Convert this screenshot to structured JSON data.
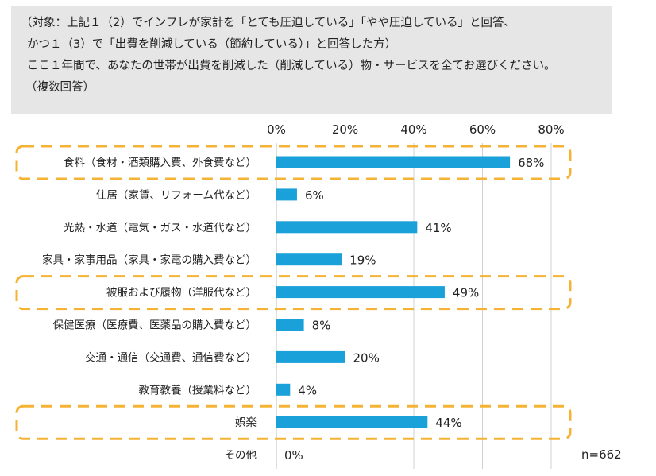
{
  "question": {
    "lines": [
      "（対象：上記１（2）でインフレが家計を「とても圧迫している」「やや圧迫している」と回答、",
      "かつ１（3）で「出費を削減している（節約している）」と回答した方）",
      "ここ１年間で、あなたの世帯が出費を削減した（削減している）物・サービスを全てお選びください。",
      "（複数回答）"
    ]
  },
  "sample_size": "n=662",
  "colors": {
    "bar": "#1ba1d9",
    "highlight": "#f5b335",
    "grid": "#d0d0d0",
    "question_bg": "#e7e6e6"
  },
  "chart_data": {
    "type": "bar",
    "orientation": "horizontal",
    "title": "",
    "xlabel": "",
    "ylabel": "",
    "xlim": [
      0,
      80
    ],
    "ticks": [
      0,
      20,
      40,
      60,
      80
    ],
    "tick_labels": [
      "0%",
      "20%",
      "40%",
      "60%",
      "80%"
    ],
    "categories": [
      "食料（食材・酒類購入費、外食費など）",
      "住居（家賃、リフォーム代など）",
      "光熱・水道（電気・ガス・水道代など）",
      "家具・家事用品（家具・家電の購入費など）",
      "被服および履物（洋服代など）",
      "保健医療（医療費、医薬品の購入費など）",
      "交通・通信（交通費、通信費など）",
      "教育教養（授業料など）",
      "娯楽",
      "その他"
    ],
    "values": [
      68,
      6,
      41,
      19,
      49,
      8,
      20,
      4,
      44,
      0
    ],
    "value_labels": [
      "68%",
      "6%",
      "41%",
      "19%",
      "49%",
      "8%",
      "20%",
      "4%",
      "44%",
      "0%"
    ],
    "highlighted": [
      "食料（食材・酒類購入費、外食費など）",
      "被服および履物（洋服代など）",
      "娯楽"
    ],
    "grid": true,
    "legend": "none"
  }
}
